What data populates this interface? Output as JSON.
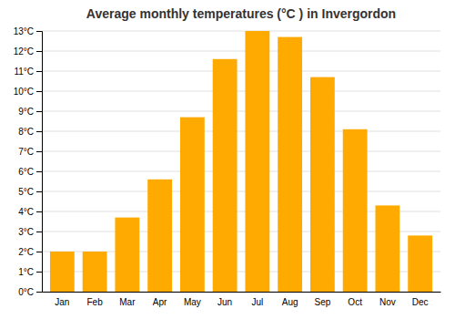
{
  "chart_data": {
    "type": "bar",
    "title": "Average monthly temperatures (°C ) in Invergordon",
    "categories": [
      "Jan",
      "Feb",
      "Mar",
      "Apr",
      "May",
      "Jun",
      "Jul",
      "Aug",
      "Sep",
      "Oct",
      "Nov",
      "Dec"
    ],
    "values": [
      2.0,
      2.0,
      3.7,
      5.6,
      8.7,
      11.6,
      13.0,
      12.7,
      10.7,
      8.1,
      4.3,
      2.8
    ],
    "color": "#FFAA00",
    "ylim": [
      0,
      13
    ],
    "yticks": [
      {
        "value": 0,
        "label": "0°C"
      },
      {
        "value": 1,
        "label": "1°C"
      },
      {
        "value": 2,
        "label": "2°C"
      },
      {
        "value": 3,
        "label": "3°C"
      },
      {
        "value": 4,
        "label": "4°C"
      },
      {
        "value": 5,
        "label": "5°C"
      },
      {
        "value": 6,
        "label": "6°C"
      },
      {
        "value": 7,
        "label": "7°C"
      },
      {
        "value": 8,
        "label": "8°C"
      },
      {
        "value": 9,
        "label": "9°C"
      },
      {
        "value": 10,
        "label": "10°C"
      },
      {
        "value": 11,
        "label": "11°C"
      },
      {
        "value": 12,
        "label": "12°C"
      },
      {
        "value": 13,
        "label": "13°C"
      }
    ],
    "grid": true
  }
}
